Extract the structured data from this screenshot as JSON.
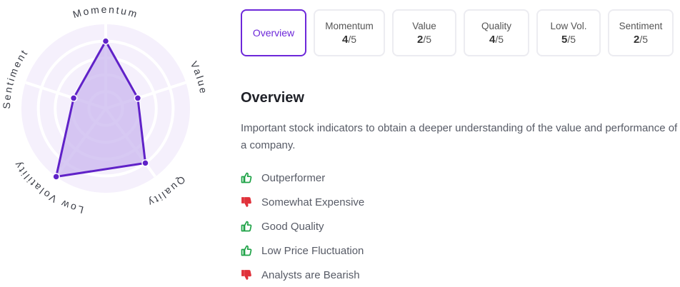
{
  "radar": {
    "axes": [
      {
        "label": "Momentum",
        "score": 4
      },
      {
        "label": "Value",
        "score": 2
      },
      {
        "label": "Quality",
        "score": 4
      },
      {
        "label": "Low Volatility",
        "score": 5
      },
      {
        "label": "Sentiment",
        "score": 2
      }
    ],
    "max_score": 5,
    "colors": {
      "fill": "#c9b7ef",
      "stroke": "#6022c8",
      "background": "#f5f0fc",
      "grid": "#ffffff"
    }
  },
  "tabs": [
    {
      "title": "Overview",
      "active": true
    },
    {
      "title": "Momentum",
      "score": "4",
      "denominator": "/5"
    },
    {
      "title": "Value",
      "score": "2",
      "denominator": "/5"
    },
    {
      "title": "Quality",
      "score": "4",
      "denominator": "/5"
    },
    {
      "title": "Low Vol.",
      "score": "5",
      "denominator": "/5"
    },
    {
      "title": "Sentiment",
      "score": "2",
      "denominator": "/5"
    }
  ],
  "panel": {
    "title": "Overview",
    "description": "Important stock indicators to obtain a deeper understanding of the value and performance of a company.",
    "indicators": [
      {
        "text": "Outperformer",
        "sentiment": "positive",
        "icon": "thumbs-up-icon"
      },
      {
        "text": "Somewhat Expensive",
        "sentiment": "negative",
        "icon": "thumbs-down-icon"
      },
      {
        "text": "Good Quality",
        "sentiment": "positive",
        "icon": "thumbs-up-icon"
      },
      {
        "text": "Low Price Fluctuation",
        "sentiment": "positive",
        "icon": "thumbs-up-icon"
      },
      {
        "text": "Analysts are Bearish",
        "sentiment": "negative",
        "icon": "thumbs-down-icon"
      }
    ]
  },
  "colors": {
    "accent": "#6d28d9",
    "positive": "#1fa347",
    "negative": "#e0313a"
  }
}
